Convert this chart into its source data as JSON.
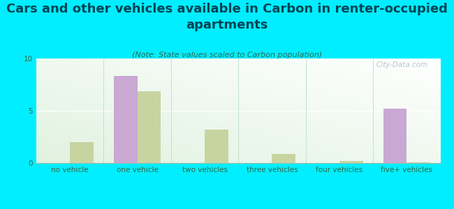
{
  "title": "Cars and other vehicles available in Carbon in renter-occupied\napartments",
  "subtitle": "(Note: State values scaled to Carbon population)",
  "categories": [
    "no vehicle",
    "one vehicle",
    "two vehicles",
    "three vehicles",
    "four vehicles",
    "five+ vehicles"
  ],
  "carbon_values": [
    0,
    8.3,
    0,
    0,
    0,
    5.2
  ],
  "indiana_values": [
    2.0,
    6.9,
    3.2,
    0.9,
    0.2,
    0.1
  ],
  "carbon_color": "#c9a8d4",
  "indiana_color": "#c8d4a0",
  "background_color": "#00eeff",
  "bar_width": 0.35,
  "ylim": [
    0,
    10
  ],
  "yticks": [
    0,
    5,
    10
  ],
  "title_fontsize": 13,
  "subtitle_fontsize": 8,
  "tick_fontsize": 7.5,
  "legend_fontsize": 9,
  "title_color": "#004455",
  "subtitle_color": "#336655",
  "tick_color": "#336644",
  "watermark_text": "City-Data.com",
  "watermark_color": "#aabbcc"
}
